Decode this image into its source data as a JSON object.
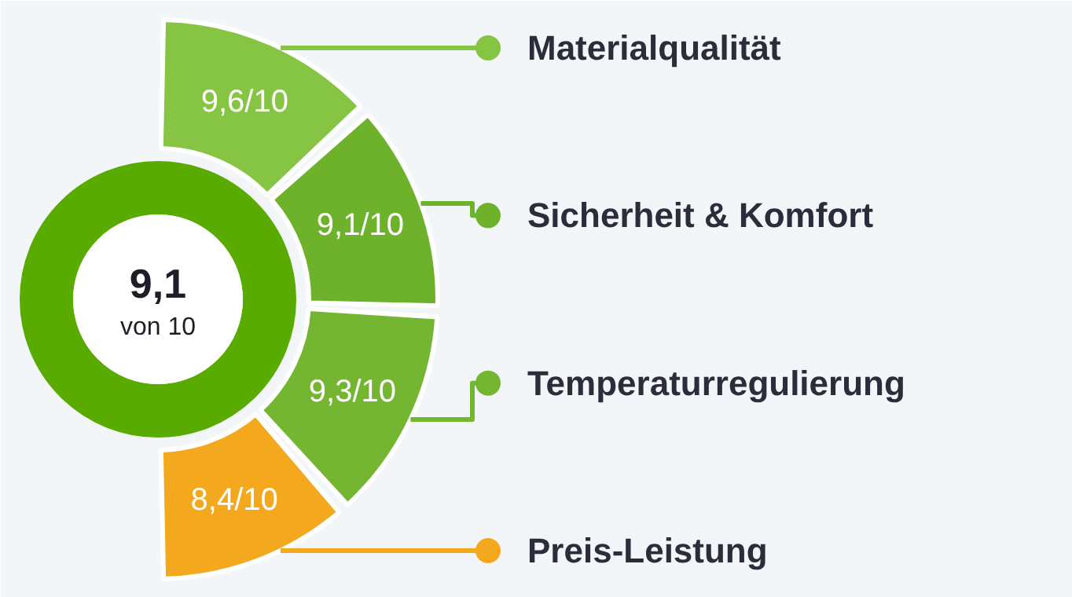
{
  "chart_data": {
    "type": "other",
    "values": [
      9.6,
      9.1,
      9.3,
      8.4
    ],
    "categories": [
      "Materialqualität",
      "Sicherheit & Komfort",
      "Temperaturregulierung",
      "Preis-Leistung"
    ],
    "value_labels": [
      "9,6/10",
      "9,1/10",
      "9,3/10",
      "8,4/10"
    ],
    "colors": [
      "#86c443",
      "#6db22a",
      "#74b631",
      "#f4a81e"
    ],
    "annotations": [
      "9,1",
      "von 10"
    ]
  }
}
